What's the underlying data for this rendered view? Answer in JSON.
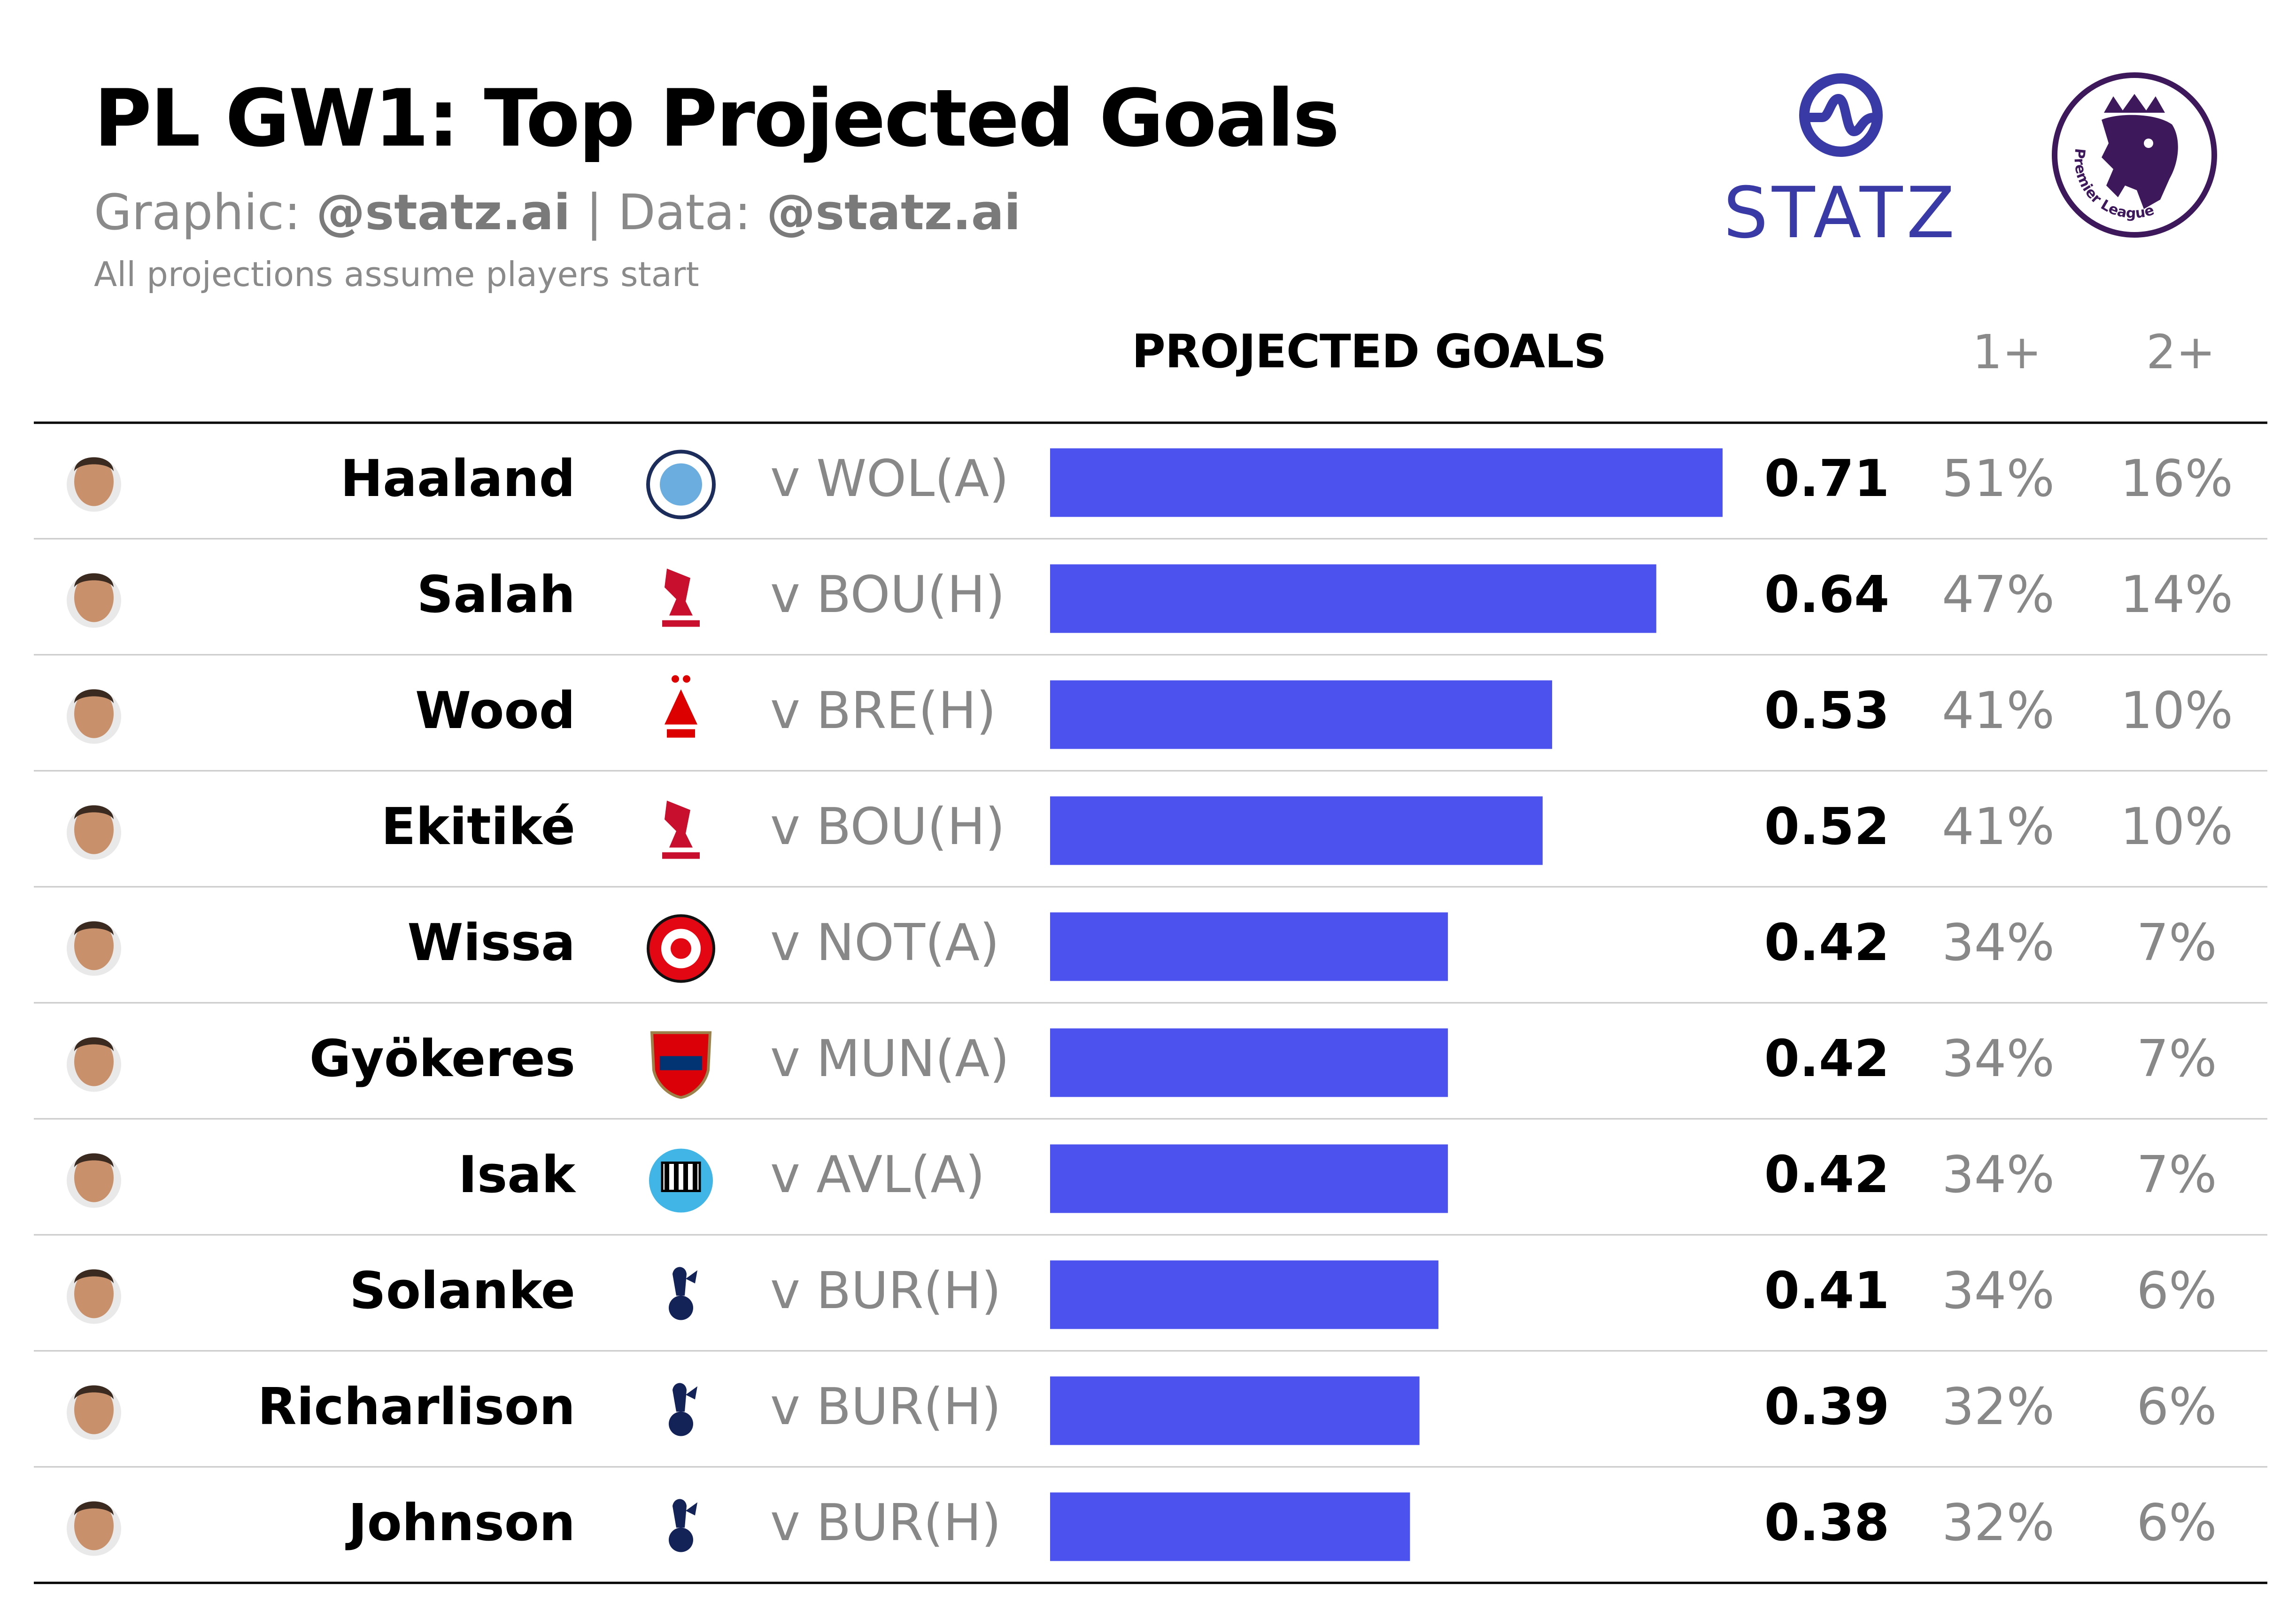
{
  "header": {
    "title": "PL GW1: Top Projected Goals",
    "subtitle_prefix1": "Graphic: ",
    "subtitle_handle1": "@statz.ai",
    "subtitle_sep": " | ",
    "subtitle_prefix2": "Data: ",
    "subtitle_handle2": "@statz.ai",
    "note": "All projections assume players start",
    "statz_logo_text": "STATZ",
    "pl_logo_text": "Premier League"
  },
  "columns": {
    "projected": "PROJECTED GOALS",
    "p1": "1+",
    "p2": "2+"
  },
  "colors": {
    "bar": "#4c52ee",
    "statz": "#3a3aa6",
    "pl_purple": "#3d195b"
  },
  "chart_data": {
    "type": "bar",
    "orientation": "horizontal",
    "title": "PL GW1: Top Projected Goals",
    "value_label": "PROJECTED GOALS",
    "xlim": [
      0,
      0.71
    ],
    "categories": [
      "Haaland",
      "Salah",
      "Wood",
      "Ekitiké",
      "Wissa",
      "Gyökeres",
      "Isak",
      "Solanke",
      "Richarlison",
      "Johnson"
    ],
    "values": [
      0.71,
      0.64,
      0.53,
      0.52,
      0.42,
      0.42,
      0.42,
      0.41,
      0.39,
      0.38
    ],
    "rows": [
      {
        "player": "Haaland",
        "club_icon": "man-city-crest-icon",
        "opponent": "v WOL(A)",
        "value": 0.71,
        "value_label": "0.71",
        "p1": "51%",
        "p2": "16%"
      },
      {
        "player": "Salah",
        "club_icon": "liverpool-crest-icon",
        "opponent": "v BOU(H)",
        "value": 0.64,
        "value_label": "0.64",
        "p1": "47%",
        "p2": "14%"
      },
      {
        "player": "Wood",
        "club_icon": "nottingham-forest-crest-icon",
        "opponent": "v BRE(H)",
        "value": 0.53,
        "value_label": "0.53",
        "p1": "41%",
        "p2": "10%"
      },
      {
        "player": "Ekitiké",
        "club_icon": "liverpool-crest-icon",
        "opponent": "v BOU(H)",
        "value": 0.52,
        "value_label": "0.52",
        "p1": "41%",
        "p2": "10%"
      },
      {
        "player": "Wissa",
        "club_icon": "brentford-crest-icon",
        "opponent": "v NOT(A)",
        "value": 0.42,
        "value_label": "0.42",
        "p1": "34%",
        "p2": "7%"
      },
      {
        "player": "Gyökeres",
        "club_icon": "arsenal-crest-icon",
        "opponent": "v MUN(A)",
        "value": 0.42,
        "value_label": "0.42",
        "p1": "34%",
        "p2": "7%"
      },
      {
        "player": "Isak",
        "club_icon": "newcastle-crest-icon",
        "opponent": "v AVL(A)",
        "value": 0.42,
        "value_label": "0.42",
        "p1": "34%",
        "p2": "7%"
      },
      {
        "player": "Solanke",
        "club_icon": "tottenham-crest-icon",
        "opponent": "v BUR(H)",
        "value": 0.41,
        "value_label": "0.41",
        "p1": "34%",
        "p2": "6%"
      },
      {
        "player": "Richarlison",
        "club_icon": "tottenham-crest-icon",
        "opponent": "v BUR(H)",
        "value": 0.39,
        "value_label": "0.39",
        "p1": "32%",
        "p2": "6%"
      },
      {
        "player": "Johnson",
        "club_icon": "tottenham-crest-icon",
        "opponent": "v BUR(H)",
        "value": 0.38,
        "value_label": "0.38",
        "p1": "32%",
        "p2": "6%"
      }
    ]
  }
}
